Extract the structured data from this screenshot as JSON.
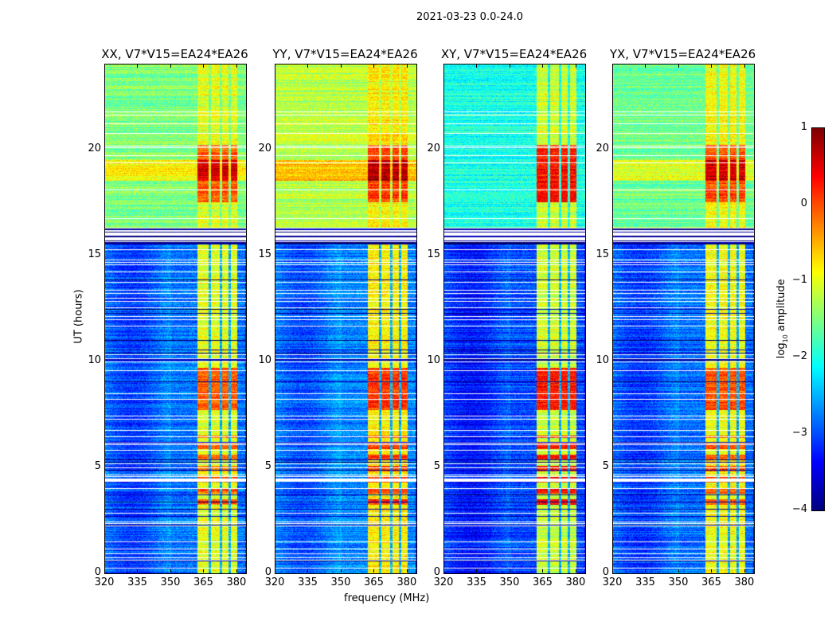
{
  "chart_data": {
    "type": "heatmap",
    "title": "2021-03-23 0.0-24.0",
    "xlabel": "frequency (MHz)",
    "ylabel": "UT (hours)",
    "xlim": [
      320,
      384
    ],
    "ylim": [
      0,
      24
    ],
    "xticks": [
      "320",
      "335",
      "350",
      "365",
      "380"
    ],
    "xtick_values": [
      320,
      335,
      350,
      365,
      380
    ],
    "yticks": [
      "0",
      "5",
      "10",
      "15",
      "20"
    ],
    "ytick_values": [
      0,
      5,
      10,
      15,
      20
    ],
    "panels": [
      {
        "title": "XX, V7*V15=EA24*EA26",
        "night_level": -2.8,
        "day_level": -1.5,
        "band_level": -1.0,
        "flare_level": 0.2
      },
      {
        "title": "YY, V7*V15=EA24*EA26",
        "night_level": -2.7,
        "day_level": -1.2,
        "band_level": -0.8,
        "flare_level": 0.4
      },
      {
        "title": "XY, V7*V15=EA24*EA26",
        "night_level": -3.0,
        "day_level": -2.0,
        "band_level": -1.1,
        "flare_level": 0.6
      },
      {
        "title": "YX, V7*V15=EA24*EA26",
        "night_level": -2.8,
        "day_level": -1.6,
        "band_level": -0.9,
        "flare_level": 0.3
      }
    ],
    "features": {
      "rfi_band_mhz": [
        362,
        380
      ],
      "bright_periods_hours": [
        [
          7.7,
          9.7
        ],
        [
          17.5,
          20.2
        ]
      ],
      "flagged_gap_hours": [
        15.5,
        16.3
      ]
    },
    "colorbar": {
      "label": "log10 amplitude",
      "label_main": "log",
      "label_sub": "10",
      "label_rest": " amplitude",
      "cmap": "jet",
      "range": [
        -4,
        1
      ],
      "ticks": [
        "1",
        "0",
        "−1",
        "−2",
        "−3",
        "−4"
      ],
      "tick_values": [
        1,
        0,
        -1,
        -2,
        -3,
        -4
      ]
    }
  }
}
